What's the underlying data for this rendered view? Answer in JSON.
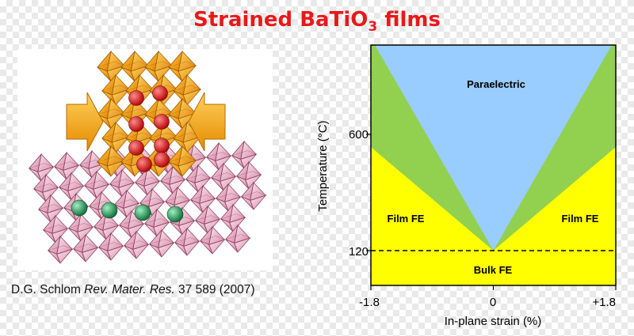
{
  "title": {
    "main": "Strained BaTiO",
    "subscript": "3",
    "suffix": " films",
    "color": "#e8191b"
  },
  "citation": {
    "author": "D.G. Schlom ",
    "journal": "Rev. Mater. Res.",
    "rest": " 37 589 (2007)"
  },
  "crystal_image": {
    "description_icon": "perovskite-crystal-structure-illustration",
    "colors": {
      "upper_octahedra": "#f5a516",
      "lower_octahedra": "#f2b4c9",
      "arrows": "#f7a21c",
      "upper_spheres": "#e31818",
      "lower_spheres": "#1f9a52"
    }
  },
  "chart_data": {
    "type": "phase-diagram",
    "xlabel": "In-plane strain (%)",
    "ylabel": "Temperature (°C)",
    "x_ticks": [
      "-1.8",
      "0",
      "+1.8"
    ],
    "y_ticks": [
      "120",
      "600"
    ],
    "xlim": [
      -1.8,
      1.8
    ],
    "bulk_fe_transition_temperature": 120,
    "regions": [
      {
        "name": "Paraelectric",
        "color": "#99ccff"
      },
      {
        "name": "Film FE",
        "color": "#ffff00",
        "side": "left"
      },
      {
        "name": "Film FE",
        "color": "#ffff00",
        "side": "right"
      },
      {
        "name": "Bulk FE",
        "color": "#ffff00"
      }
    ],
    "boundary_band_color": "#92d050",
    "dashed_line_at": 120
  }
}
